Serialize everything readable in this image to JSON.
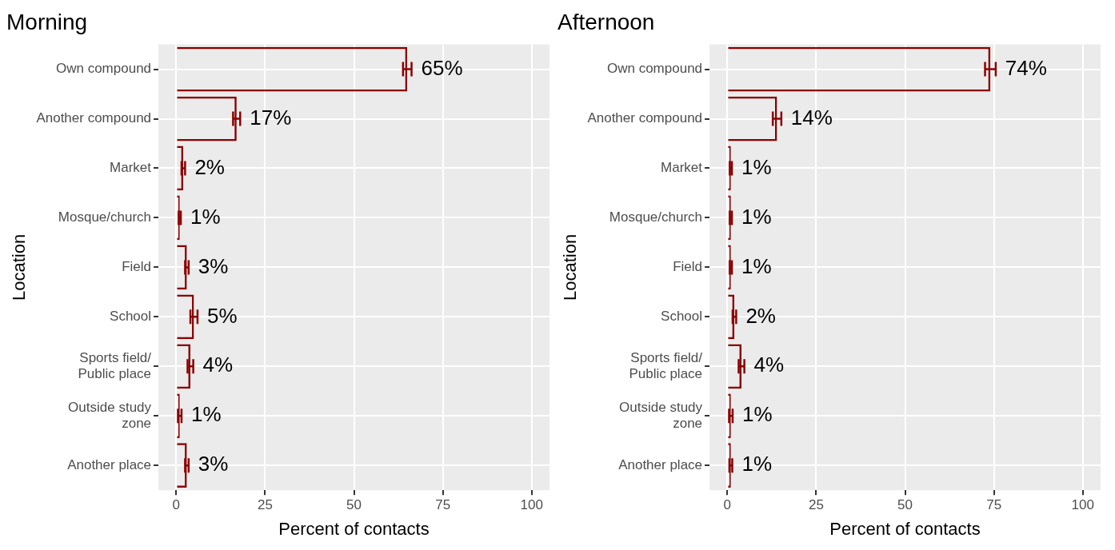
{
  "chart_data": [
    {
      "type": "bar",
      "orientation": "horizontal",
      "title": "Morning",
      "xlabel": "Percent of contacts",
      "ylabel": "Location",
      "categories": [
        "Own compound",
        "Another compound",
        "Market",
        "Mosque/church",
        "Field",
        "School",
        "Sports field/\nPublic place",
        "Outside study\nzone",
        "Another place"
      ],
      "values": [
        65,
        17,
        2,
        1,
        3,
        5,
        4,
        1,
        3
      ],
      "value_labels": [
        "65%",
        "17%",
        "2%",
        "1%",
        "3%",
        "5%",
        "4%",
        "1%",
        "3%"
      ],
      "errors": [
        1.2,
        1,
        0.5,
        0.3,
        0.5,
        1,
        0.8,
        0.5,
        0.5
      ],
      "color": "#8b0000",
      "xlim": [
        -5,
        105
      ],
      "xticks": [
        0,
        25,
        50,
        75,
        100
      ],
      "grid": true,
      "legend": false
    },
    {
      "type": "bar",
      "orientation": "horizontal",
      "title": "Afternoon",
      "xlabel": "Percent of contacts",
      "ylabel": "Location",
      "categories": [
        "Own compound",
        "Another compound",
        "Market",
        "Mosque/church",
        "Field",
        "School",
        "Sports field/\nPublic place",
        "Outside study\nzone",
        "Another place"
      ],
      "values": [
        74,
        14,
        1,
        1,
        1,
        2,
        4,
        1,
        1
      ],
      "value_labels": [
        "74%",
        "14%",
        "1%",
        "1%",
        "1%",
        "2%",
        "4%",
        "1%",
        "1%"
      ],
      "errors": [
        1.5,
        1.2,
        0.3,
        0.3,
        0.3,
        0.5,
        0.8,
        0.5,
        0.4
      ],
      "color": "#8b0000",
      "xlim": [
        -5,
        105
      ],
      "xticks": [
        0,
        25,
        50,
        75,
        100
      ],
      "grid": true,
      "legend": false
    }
  ]
}
